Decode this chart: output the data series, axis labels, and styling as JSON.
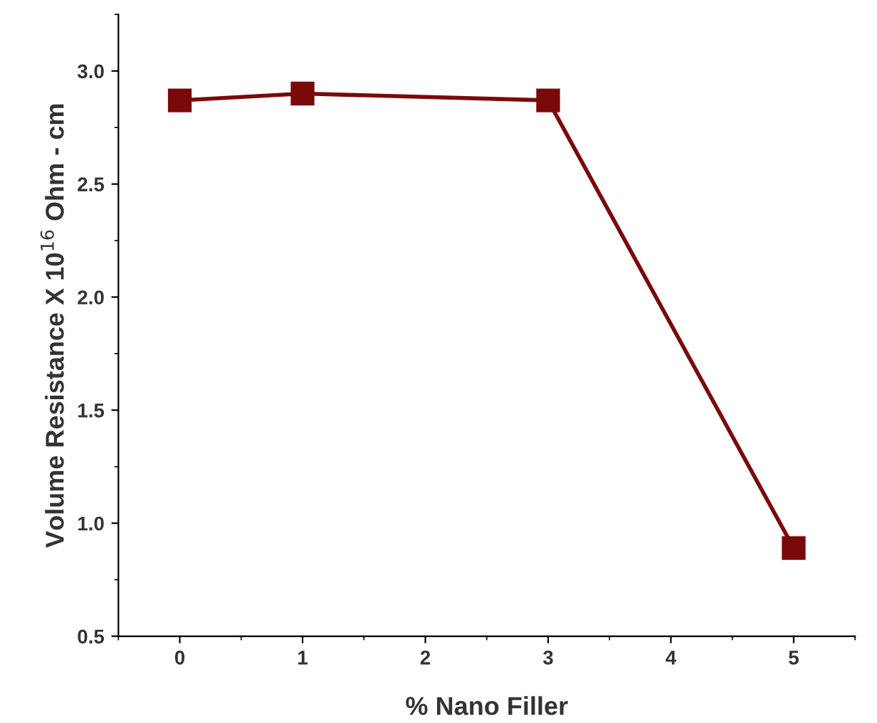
{
  "chart_data": {
    "type": "line",
    "xlabel": "% Nano Filler",
    "ylabel": "Volume Resistance X 10$^{16}$ Ohm - cm",
    "x": [
      0,
      1,
      3,
      5
    ],
    "series": [
      {
        "color": "#7a0a0a",
        "values": [
          2.87,
          2.9,
          2.87,
          0.89
        ]
      }
    ],
    "xlim": [
      -0.5,
      5.5
    ],
    "xticks": [
      0,
      1,
      2,
      3,
      4,
      5
    ],
    "ylim": [
      0.5,
      3.25
    ],
    "yticks": [
      {
        "value": 0.5,
        "label": "0.5"
      },
      {
        "value": 1.0,
        "label": "1.0"
      },
      {
        "value": 1.5,
        "label": "1.5"
      },
      {
        "value": 2.0,
        "label": "2.0"
      },
      {
        "value": 2.5,
        "label": "2.5"
      },
      {
        "value": 3.0,
        "label": "3.0"
      }
    ],
    "marker": "square",
    "line_style": "solid",
    "grid": false,
    "legend": false
  }
}
